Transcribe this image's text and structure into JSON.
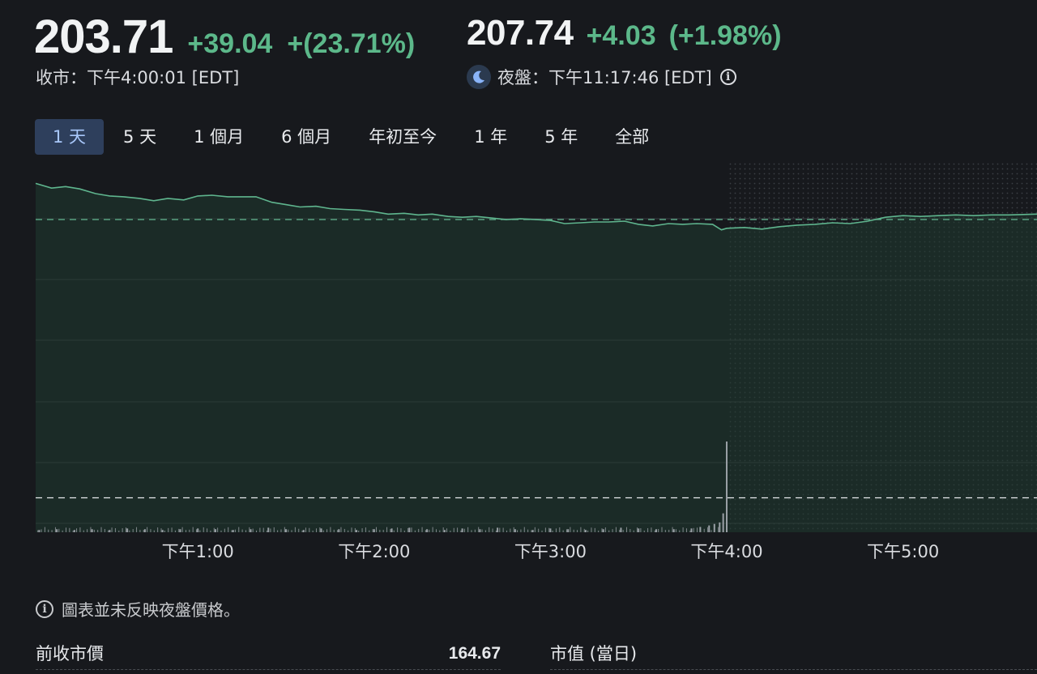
{
  "quote": {
    "price": "203.71",
    "change": "+39.04",
    "change_pct": "+(23.71%)",
    "close_label": "收市：下午4:00:01 [EDT]"
  },
  "after_hours": {
    "price": "207.74",
    "change": "+4.03",
    "change_pct": "(+1.98%)",
    "label": "夜盤：下午11:17:46 [EDT]",
    "icon": "moon-icon"
  },
  "tabs": [
    {
      "label": "1 天",
      "active": true
    },
    {
      "label": "5 天",
      "active": false
    },
    {
      "label": "1 個月",
      "active": false
    },
    {
      "label": "6 個月",
      "active": false
    },
    {
      "label": "年初至今",
      "active": false
    },
    {
      "label": "1 年",
      "active": false
    },
    {
      "label": "5 年",
      "active": false
    },
    {
      "label": "全部",
      "active": false
    }
  ],
  "colors": {
    "up": "#5cb88a",
    "line": "#5fb58e",
    "tab_active_bg": "#2e3f5c",
    "background": "#17191d"
  },
  "chart_data": {
    "type": "line",
    "x_tick_labels": [
      "下午1:00",
      "下午2:00",
      "下午3:00",
      "下午4:00",
      "下午5:00"
    ],
    "x_tick_hours": [
      13,
      14,
      15,
      16,
      17
    ],
    "x_range_hours": [
      12.08,
      17.76
    ],
    "y_range": [
      164.0,
      210.5
    ],
    "previous_close": 164.67,
    "reference_price": 203.71,
    "session_close_hour": 16.0,
    "grid": true,
    "series": [
      {
        "x_hours": [
          12.08,
          12.17,
          12.25,
          12.33,
          12.42,
          12.5,
          12.58,
          12.67,
          12.75,
          12.83,
          12.92,
          13.0,
          13.08,
          13.17,
          13.25,
          13.33,
          13.42,
          13.5,
          13.58,
          13.67,
          13.75,
          13.83,
          13.92,
          14.0,
          14.08,
          14.17,
          14.25,
          14.33,
          14.42,
          14.5,
          14.58,
          14.67,
          14.75,
          14.83,
          14.92,
          15.0,
          15.08,
          15.17,
          15.25,
          15.33,
          15.42,
          15.5,
          15.58,
          15.67,
          15.75,
          15.83,
          15.92,
          15.97,
          16.0,
          16.1,
          16.2,
          16.3,
          16.4,
          16.5,
          16.6,
          16.7,
          16.8,
          16.9,
          17.0,
          17.1,
          17.2,
          17.3,
          17.4,
          17.5,
          17.6,
          17.76
        ],
        "values": [
          208.3,
          207.7,
          207.9,
          207.6,
          207.0,
          206.7,
          206.6,
          206.4,
          206.1,
          206.4,
          206.2,
          206.7,
          206.8,
          206.6,
          206.6,
          206.6,
          205.9,
          205.6,
          205.3,
          205.4,
          205.1,
          205.0,
          204.9,
          204.7,
          204.4,
          204.5,
          204.3,
          204.4,
          204.1,
          204.0,
          204.1,
          203.9,
          203.7,
          203.8,
          203.7,
          203.6,
          203.2,
          203.3,
          203.4,
          203.4,
          203.5,
          203.1,
          202.9,
          203.2,
          203.1,
          203.2,
          203.1,
          202.4,
          202.6,
          202.7,
          202.5,
          202.8,
          203.0,
          203.1,
          203.3,
          203.2,
          203.5,
          204.0,
          204.2,
          204.1,
          204.2,
          204.3,
          204.2,
          204.3,
          204.3,
          204.4
        ]
      }
    ],
    "volume": {
      "x_hours": [
        12.1,
        12.2,
        12.3,
        12.4,
        12.5,
        12.6,
        12.7,
        12.8,
        12.9,
        13.0,
        13.1,
        13.2,
        13.3,
        13.4,
        13.5,
        13.6,
        13.7,
        13.8,
        13.9,
        14.0,
        14.1,
        14.2,
        14.3,
        14.4,
        14.5,
        14.6,
        14.7,
        14.8,
        14.9,
        15.0,
        15.1,
        15.2,
        15.3,
        15.4,
        15.5,
        15.6,
        15.7,
        15.8,
        15.85,
        15.9,
        15.93,
        15.96,
        15.98,
        16.0
      ],
      "values": [
        3,
        4,
        3,
        4,
        3,
        5,
        4,
        3,
        4,
        5,
        4,
        3,
        4,
        6,
        4,
        3,
        5,
        4,
        3,
        4,
        5,
        6,
        4,
        3,
        5,
        4,
        6,
        4,
        3,
        5,
        4,
        3,
        4,
        6,
        5,
        4,
        4,
        5,
        7,
        9,
        11,
        13,
        25,
        120
      ]
    }
  },
  "notice": {
    "text": "圖表並未反映夜盤價格。"
  },
  "stats": [
    {
      "label": "前收市價",
      "value": "164.67"
    },
    {
      "label": "市值 (當日)",
      "value": ""
    }
  ]
}
